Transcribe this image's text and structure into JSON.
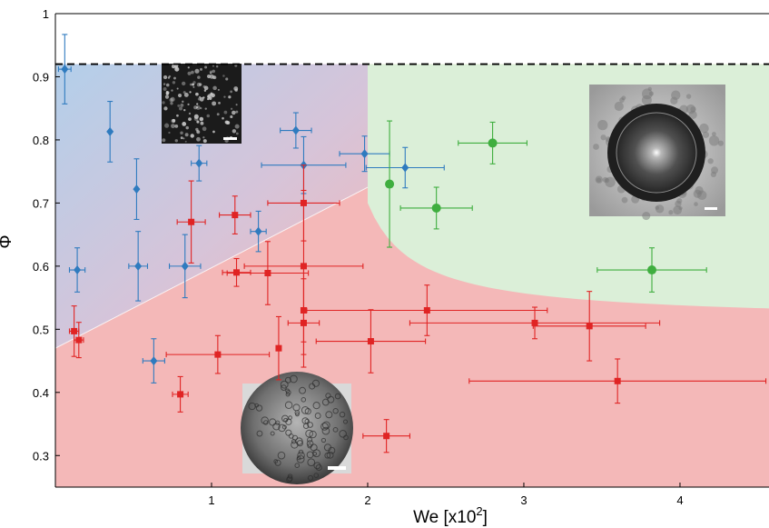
{
  "chart_data": {
    "type": "scatter",
    "title": "",
    "xlabel": "We [x10",
    "xlabel_sup": "2",
    "xlabel_end": "]",
    "ylabel": "Φ",
    "xlim": [
      0,
      4.57
    ],
    "ylim": [
      0.25,
      1.0
    ],
    "xticks": [
      1,
      2,
      3,
      4
    ],
    "yticks": [
      0.3,
      0.4,
      0.5,
      0.6,
      0.7,
      0.8,
      0.9,
      1
    ],
    "ytick_labels": [
      "0.3",
      "0.4",
      "0.5",
      "0.6",
      "0.7",
      "0.8",
      "0.9",
      "1"
    ],
    "dashed_line_y": 0.92,
    "grid": false,
    "colors": {
      "blue": "#2f7bbf",
      "red": "#e02424",
      "green": "#3fae3f",
      "region_blue": "#b9d2ea",
      "region_red": "#f4b8b8",
      "region_green": "#dbefd8"
    },
    "series": [
      {
        "marker": "diamond",
        "color": "blue",
        "points": [
          {
            "x": 0.06,
            "y": 0.912,
            "xerr": 0.04,
            "yerr": 0.055
          },
          {
            "x": 0.14,
            "y": 0.594,
            "xerr": 0.05,
            "yerr": 0.035
          },
          {
            "x": 0.35,
            "y": 0.813,
            "xerr": 0.0,
            "yerr": 0.048
          },
          {
            "x": 0.52,
            "y": 0.722,
            "xerr": 0.0,
            "yerr": 0.048
          },
          {
            "x": 0.53,
            "y": 0.6,
            "xerr": 0.06,
            "yerr": 0.055
          },
          {
            "x": 0.63,
            "y": 0.45,
            "xerr": 0.07,
            "yerr": 0.035
          },
          {
            "x": 0.83,
            "y": 0.6,
            "xerr": 0.1,
            "yerr": 0.05
          },
          {
            "x": 0.92,
            "y": 0.763,
            "xerr": 0.05,
            "yerr": 0.028
          },
          {
            "x": 1.3,
            "y": 0.655,
            "xerr": 0.05,
            "yerr": 0.032
          },
          {
            "x": 1.54,
            "y": 0.815,
            "xerr": 0.1,
            "yerr": 0.028
          },
          {
            "x": 1.59,
            "y": 0.76,
            "xerr": 0.27,
            "yerr": 0.045
          },
          {
            "x": 1.98,
            "y": 0.778,
            "xerr": 0.16,
            "yerr": 0.028
          },
          {
            "x": 2.24,
            "y": 0.756,
            "xerr": 0.25,
            "yerr": 0.032
          }
        ]
      },
      {
        "marker": "square",
        "color": "red",
        "points": [
          {
            "x": 0.12,
            "y": 0.497,
            "xerr": 0.03,
            "yerr": 0.04
          },
          {
            "x": 0.15,
            "y": 0.483,
            "xerr": 0.03,
            "yerr": 0.028
          },
          {
            "x": 0.8,
            "y": 0.397,
            "xerr": 0.05,
            "yerr": 0.028
          },
          {
            "x": 0.87,
            "y": 0.67,
            "xerr": 0.09,
            "yerr": 0.065
          },
          {
            "x": 1.04,
            "y": 0.46,
            "xerr": 0.33,
            "yerr": 0.03
          },
          {
            "x": 1.15,
            "y": 0.681,
            "xerr": 0.1,
            "yerr": 0.03
          },
          {
            "x": 1.16,
            "y": 0.59,
            "xerr": 0.09,
            "yerr": 0.022
          },
          {
            "x": 1.36,
            "y": 0.589,
            "xerr": 0.26,
            "yerr": 0.05
          },
          {
            "x": 1.43,
            "y": 0.47,
            "xerr": 0.0,
            "yerr": 0.05
          },
          {
            "x": 1.59,
            "y": 0.7,
            "xerr": 0.23,
            "yerr": 0.06
          },
          {
            "x": 1.59,
            "y": 0.6,
            "xerr": 0.38,
            "yerr": 0.12
          },
          {
            "x": 1.59,
            "y": 0.53,
            "xerr": 0.0,
            "yerr": 0.07
          },
          {
            "x": 1.59,
            "y": 0.51,
            "xerr": 0.1,
            "yerr": 0.07
          },
          {
            "x": 2.02,
            "y": 0.481,
            "xerr": 0.35,
            "yerr": 0.05
          },
          {
            "x": 2.12,
            "y": 0.331,
            "xerr": 0.15,
            "yerr": 0.026
          },
          {
            "x": 2.38,
            "y": 0.53,
            "xerr": 0.77,
            "yerr": 0.04
          },
          {
            "x": 3.07,
            "y": 0.51,
            "xerr": 0.8,
            "yerr": 0.025
          },
          {
            "x": 3.42,
            "y": 0.505,
            "xerr": 0.36,
            "yerr": 0.055
          },
          {
            "x": 3.6,
            "y": 0.418,
            "xerr": 0.95,
            "yerr": 0.035
          }
        ]
      },
      {
        "marker": "circle",
        "color": "green",
        "points": [
          {
            "x": 2.14,
            "y": 0.73,
            "xerr": 0.0,
            "yerr": 0.1
          },
          {
            "x": 2.44,
            "y": 0.692,
            "xerr": 0.23,
            "yerr": 0.033
          },
          {
            "x": 2.8,
            "y": 0.795,
            "xerr": 0.22,
            "yerr": 0.033
          },
          {
            "x": 3.82,
            "y": 0.594,
            "xerr": 0.35,
            "yerr": 0.035
          }
        ]
      }
    ],
    "regions": {
      "boundary_x": 2.0,
      "boundary_top_y": 0.92,
      "boundary_corner_y": 0.7,
      "boundary_end_y": 0.513,
      "white_line": [
        [
          0.0,
          0.47
        ],
        [
          2.0,
          0.725
        ]
      ]
    },
    "insets": [
      {
        "name": "blue-regime-inset-image",
        "scale_bar": true
      },
      {
        "name": "green-regime-inset-image",
        "scale_bar": true
      },
      {
        "name": "red-regime-inset-image",
        "scale_bar": true
      }
    ]
  }
}
